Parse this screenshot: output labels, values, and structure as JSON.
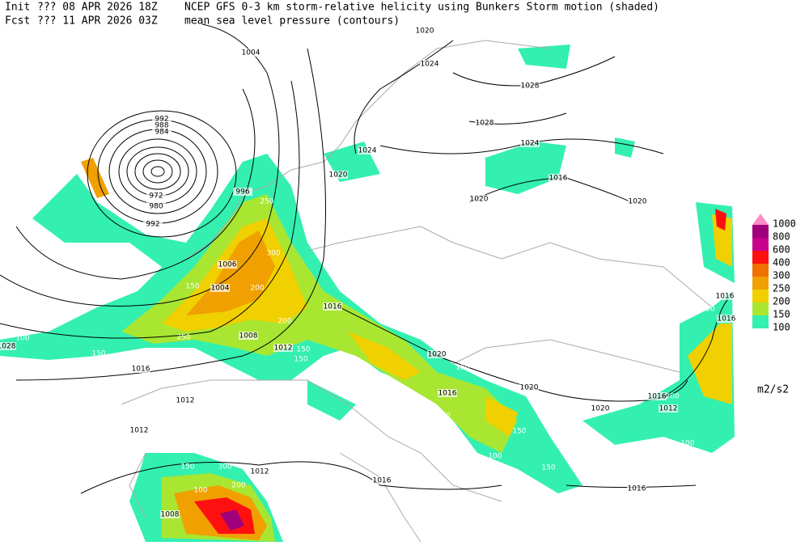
{
  "header": {
    "init_label": "Init",
    "init": "??? 08 APR 2026 18Z",
    "fcst_label": "Fcst",
    "fcst": "??? 11 APR 2026 03Z",
    "title": "NCEP GFS 0-3 km storm-relative helicity using Bunkers Storm motion (shaded)",
    "subtitle": "mean sea level pressure (contours)"
  },
  "legend": {
    "levels": [
      1000,
      800,
      600,
      400,
      300,
      250,
      200,
      150,
      100
    ],
    "colors": [
      "#ff8cc6",
      "#a0007a",
      "#c8008c",
      "#ff1010",
      "#f07000",
      "#f0a000",
      "#f0d000",
      "#a8e632",
      "#33f0b0"
    ],
    "unit": "m2/s2"
  },
  "isobar_labels": [
    1004,
    992,
    988,
    984,
    972,
    980,
    992,
    996,
    1006,
    1004,
    1008,
    1012,
    1016,
    1012,
    1012,
    1012,
    1008,
    1016,
    1016,
    1020,
    1016,
    1020,
    1020,
    1016,
    1012,
    1016,
    1020,
    1024,
    1028,
    1028,
    1024,
    1020,
    1024,
    1016,
    1020,
    1020,
    1016,
    1016,
    1028
  ],
  "shade_labels": [
    100,
    250,
    300,
    150,
    200,
    200,
    150,
    250,
    150,
    150,
    100,
    150,
    200,
    100,
    150,
    250,
    300,
    200,
    150,
    100,
    150,
    100,
    150,
    100,
    200,
    100,
    150,
    100
  ]
}
